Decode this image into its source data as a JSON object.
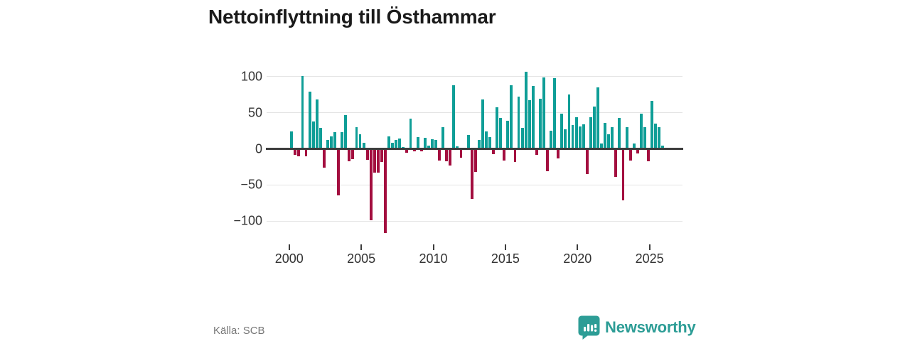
{
  "title": "Nettoinflyttning till Östhammar",
  "footer": {
    "source": "Källa: SCB",
    "brand_name": "Newsworthy"
  },
  "colors": {
    "positive_bar": "#0f9e97",
    "negative_bar": "#a30e3f",
    "baseline": "#3d3d3d",
    "gridline": "#e4e4e4",
    "axis_text": "#333333",
    "brand_teal": "#2d9d96",
    "title_text": "#1a1a1a",
    "source_text": "#767676"
  },
  "chart_data": {
    "type": "bar",
    "title": "Nettoinflyttning till Östhammar",
    "xlabel": "",
    "ylabel": "",
    "grid": "horizontal",
    "legend": "none",
    "ylim": [
      -125,
      112
    ],
    "y_ticks": [
      100,
      50,
      0,
      -50,
      -100
    ],
    "y_tick_labels": [
      "100",
      "50",
      "0",
      "−50",
      "−100"
    ],
    "x_ticks": [
      2000,
      2005,
      2010,
      2015,
      2020,
      2025
    ],
    "x_tick_labels": [
      "2000",
      "2005",
      "2010",
      "2015",
      "2020",
      "2025"
    ],
    "categories": [
      "2000Q1",
      "2000Q2",
      "2000Q3",
      "2000Q4",
      "2001Q1",
      "2001Q2",
      "2001Q3",
      "2001Q4",
      "2002Q1",
      "2002Q2",
      "2002Q3",
      "2002Q4",
      "2003Q1",
      "2003Q2",
      "2003Q3",
      "2003Q4",
      "2004Q1",
      "2004Q2",
      "2004Q3",
      "2004Q4",
      "2005Q1",
      "2005Q2",
      "2005Q3",
      "2005Q4",
      "2006Q1",
      "2006Q2",
      "2006Q3",
      "2006Q4",
      "2007Q1",
      "2007Q2",
      "2007Q3",
      "2007Q4",
      "2008Q1",
      "2008Q2",
      "2008Q3",
      "2008Q4",
      "2009Q1",
      "2009Q2",
      "2009Q3",
      "2009Q4",
      "2010Q1",
      "2010Q2",
      "2010Q3",
      "2010Q4",
      "2011Q1",
      "2011Q2",
      "2011Q3",
      "2011Q4",
      "2012Q1",
      "2012Q2",
      "2012Q3",
      "2012Q4",
      "2013Q1",
      "2013Q2",
      "2013Q3",
      "2013Q4",
      "2014Q1",
      "2014Q2",
      "2014Q3",
      "2014Q4",
      "2015Q1",
      "2015Q2",
      "2015Q3",
      "2015Q4",
      "2016Q1",
      "2016Q2",
      "2016Q3",
      "2016Q4",
      "2017Q1",
      "2017Q2",
      "2017Q3",
      "2017Q4",
      "2018Q1",
      "2018Q2",
      "2018Q3",
      "2018Q4",
      "2019Q1",
      "2019Q2",
      "2019Q3",
      "2019Q4",
      "2020Q1",
      "2020Q2",
      "2020Q3",
      "2020Q4",
      "2021Q1",
      "2021Q2",
      "2021Q3",
      "2021Q4",
      "2022Q1",
      "2022Q2",
      "2022Q3",
      "2022Q4",
      "2023Q1",
      "2023Q2",
      "2023Q3",
      "2023Q4",
      "2024Q1",
      "2024Q2",
      "2024Q3",
      "2024Q4",
      "2025Q1",
      "2025Q2",
      "2025Q3",
      "2025Q4"
    ],
    "values": [
      24,
      -8,
      -10,
      101,
      -10,
      79,
      38,
      68,
      29,
      -26,
      12,
      17,
      23,
      -64,
      23,
      47,
      -17,
      -14,
      30,
      20,
      8,
      -15,
      -99,
      -33,
      -33,
      -18,
      -116,
      17,
      8,
      12,
      14,
      2,
      -5,
      42,
      -3,
      16,
      -3,
      15,
      4,
      13,
      12,
      -16,
      30,
      -17,
      -23,
      88,
      3,
      -12,
      0,
      19,
      -69,
      -32,
      12,
      68,
      24,
      16,
      -7,
      57,
      43,
      -16,
      39,
      88,
      -18,
      72,
      29,
      107,
      67,
      87,
      -8,
      69,
      99,
      -31,
      25,
      98,
      -13,
      49,
      27,
      75,
      33,
      44,
      31,
      34,
      -35,
      44,
      58,
      85,
      7,
      36,
      20,
      30,
      -39,
      43,
      -71,
      30,
      -16,
      7,
      -6,
      49,
      30,
      -17,
      66,
      35,
      30,
      4
    ]
  }
}
